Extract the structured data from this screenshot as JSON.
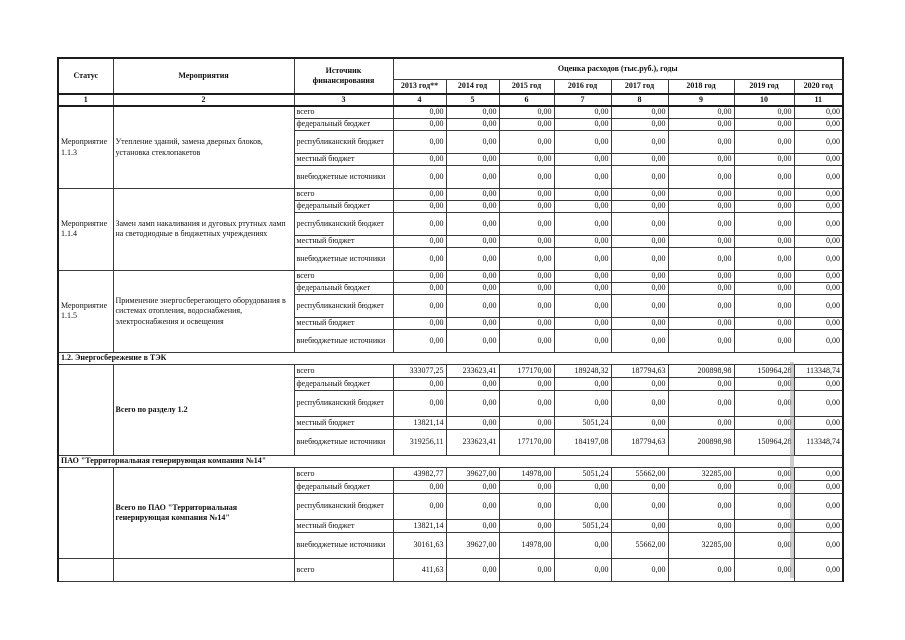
{
  "table": {
    "header": {
      "col_status": "Статус",
      "col_activities": "Мероприятия",
      "col_source": "Источник финансирования",
      "col_costs": "Оценка расходов (тыс.руб.), годы",
      "years": [
        "2013 год**",
        "2014 год",
        "2015 год",
        "2016 год",
        "2017 год",
        "2018 год",
        "2019 год",
        "2020 год"
      ],
      "col_numbers": [
        "1",
        "2",
        "3",
        "4",
        "5",
        "6",
        "7",
        "8",
        "9",
        "10",
        "11"
      ]
    },
    "sections": [
      {
        "type": "group",
        "status": "Мероприятие 1.1.3",
        "activity": "Утепление зданий, замена дверных блоков, установка стеклопакетов",
        "bold": false,
        "rows": [
          {
            "source": "всего",
            "values": [
              "0,00",
              "0,00",
              "0,00",
              "0,00",
              "0,00",
              "0,00",
              "0,00",
              "0,00"
            ]
          },
          {
            "source": "федеральный бюджет",
            "values": [
              "0,00",
              "0,00",
              "0,00",
              "0,00",
              "0,00",
              "0,00",
              "0,00",
              "0,00"
            ]
          },
          {
            "source": "республиканский бюджет",
            "values": [
              "0,00",
              "0,00",
              "0,00",
              "0,00",
              "0,00",
              "0,00",
              "0,00",
              "0,00"
            ]
          },
          {
            "source": "местный бюджет",
            "values": [
              "0,00",
              "0,00",
              "0,00",
              "0,00",
              "0,00",
              "0,00",
              "0,00",
              "0,00"
            ]
          },
          {
            "source": "внебюджетные источники",
            "values": [
              "0,00",
              "0,00",
              "0,00",
              "0,00",
              "0,00",
              "0,00",
              "0,00",
              "0,00"
            ]
          }
        ]
      },
      {
        "type": "group",
        "status": "Мероприятие 1.1.4",
        "activity": "Замен ламп накаливания и дуговых ртутных ламп на светодиодные в бюджетных учреждениях",
        "bold": false,
        "rows": [
          {
            "source": "всего",
            "values": [
              "0,00",
              "0,00",
              "0,00",
              "0,00",
              "0,00",
              "0,00",
              "0,00",
              "0,00"
            ]
          },
          {
            "source": "федеральный бюджет",
            "values": [
              "0,00",
              "0,00",
              "0,00",
              "0,00",
              "0,00",
              "0,00",
              "0,00",
              "0,00"
            ]
          },
          {
            "source": "республиканский бюджет",
            "values": [
              "0,00",
              "0,00",
              "0,00",
              "0,00",
              "0,00",
              "0,00",
              "0,00",
              "0,00"
            ]
          },
          {
            "source": "местный бюджет",
            "values": [
              "0,00",
              "0,00",
              "0,00",
              "0,00",
              "0,00",
              "0,00",
              "0,00",
              "0,00"
            ]
          },
          {
            "source": "внебюджетные источники",
            "values": [
              "0,00",
              "0,00",
              "0,00",
              "0,00",
              "0,00",
              "0,00",
              "0,00",
              "0,00"
            ]
          }
        ]
      },
      {
        "type": "group",
        "status": "Мероприятие 1.1.5",
        "activity": "Применение энергосберегающего оборудования в системах отопления, водоснабжения, электроснабжения и освещения",
        "bold": false,
        "rows": [
          {
            "source": "всего",
            "values": [
              "0,00",
              "0,00",
              "0,00",
              "0,00",
              "0,00",
              "0,00",
              "0,00",
              "0,00"
            ]
          },
          {
            "source": "федеральный бюджет",
            "values": [
              "0,00",
              "0,00",
              "0,00",
              "0,00",
              "0,00",
              "0,00",
              "0,00",
              "0,00"
            ]
          },
          {
            "source": "республиканский бюджет",
            "values": [
              "0,00",
              "0,00",
              "0,00",
              "0,00",
              "0,00",
              "0,00",
              "0,00",
              "0,00"
            ]
          },
          {
            "source": "местный бюджет",
            "values": [
              "0,00",
              "0,00",
              "0,00",
              "0,00",
              "0,00",
              "0,00",
              "0,00",
              "0,00"
            ]
          },
          {
            "source": "внебюджетные источники",
            "values": [
              "0,00",
              "0,00",
              "0,00",
              "0,00",
              "0,00",
              "0,00",
              "0,00",
              "0,00"
            ]
          }
        ]
      },
      {
        "type": "section",
        "label": "1.2. Энергосбережение в ТЭК"
      },
      {
        "type": "group",
        "status": "",
        "activity": "Всего по разделу 1.2",
        "bold": true,
        "rows": [
          {
            "source": "всего",
            "values": [
              "333077,25",
              "233623,41",
              "177170,00",
              "189248,32",
              "187794,63",
              "200898,98",
              "150964,28",
              "113348,74"
            ]
          },
          {
            "source": "федеральный бюджет",
            "values": [
              "0,00",
              "0,00",
              "0,00",
              "0,00",
              "0,00",
              "0,00",
              "0,00",
              "0,00"
            ]
          },
          {
            "source": "республиканский бюджет",
            "values": [
              "0,00",
              "0,00",
              "0,00",
              "0,00",
              "0,00",
              "0,00",
              "0,00",
              "0,00"
            ]
          },
          {
            "source": "местный бюджет",
            "values": [
              "13821,14",
              "0,00",
              "0,00",
              "5051,24",
              "0,00",
              "0,00",
              "0,00",
              "0,00"
            ]
          },
          {
            "source": "внебюджетные источники",
            "values": [
              "319256,11",
              "233623,41",
              "177170,00",
              "184197,08",
              "187794,63",
              "200898,98",
              "150964,28",
              "113348,74"
            ]
          }
        ]
      },
      {
        "type": "section",
        "label": "ПАО \"Территориальная генерирующая компания №14\""
      },
      {
        "type": "group",
        "status": "",
        "activity": "Всего по ПАО \"Территориальная генерирующая компания №14\"",
        "bold": true,
        "rows": [
          {
            "source": "всего",
            "values": [
              "43982,77",
              "39627,00",
              "14978,00",
              "5051,24",
              "55662,00",
              "32285,00",
              "0,00",
              "0,00"
            ]
          },
          {
            "source": "федеральный бюджет",
            "values": [
              "0,00",
              "0,00",
              "0,00",
              "0,00",
              "0,00",
              "0,00",
              "0,00",
              "0,00"
            ]
          },
          {
            "source": "республиканский бюджет",
            "values": [
              "0,00",
              "0,00",
              "0,00",
              "0,00",
              "0,00",
              "0,00",
              "0,00",
              "0,00"
            ]
          },
          {
            "source": "местный бюджет",
            "values": [
              "13821,14",
              "0,00",
              "0,00",
              "5051,24",
              "0,00",
              "0,00",
              "0,00",
              "0,00"
            ]
          },
          {
            "source": "внебюджетные источники",
            "values": [
              "30161,63",
              "39627,00",
              "14978,00",
              "0,00",
              "55662,00",
              "32285,00",
              "0,00",
              "0,00"
            ]
          }
        ]
      },
      {
        "type": "partial",
        "rows": [
          {
            "source": "всего",
            "values": [
              "411,63",
              "0,00",
              "0,00",
              "0,00",
              "0,00",
              "0,00",
              "0,00",
              "0,00"
            ]
          }
        ]
      }
    ]
  }
}
